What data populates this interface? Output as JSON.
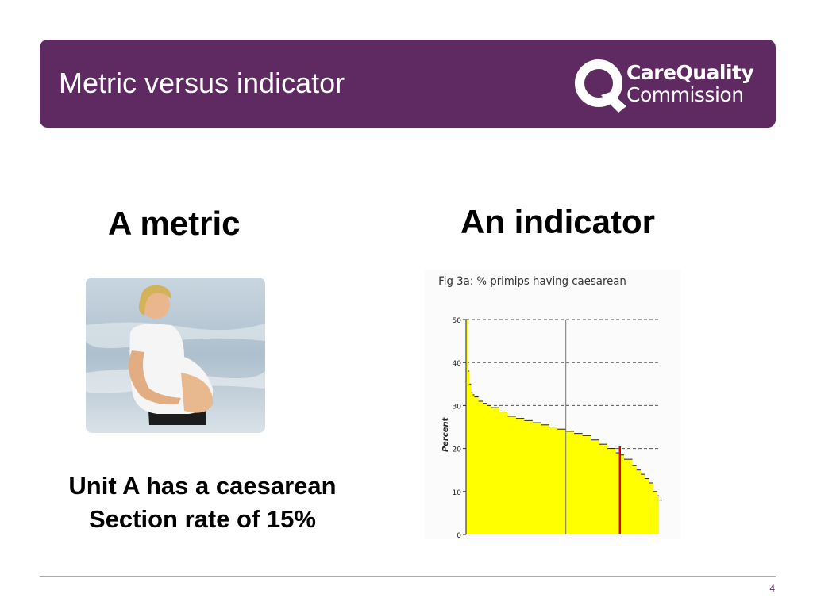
{
  "header": {
    "title": "Metric versus indicator",
    "background": "#5f2a62",
    "logo": {
      "line1": "CareQuality",
      "line2": "Commission",
      "icon": "cqc-q-logo"
    }
  },
  "left_column": {
    "heading": "A metric",
    "image": "pregnant-woman-photo",
    "caption_line1": "Unit A has a caesarean",
    "caption_line2": "Section rate of 15%"
  },
  "right_column": {
    "heading": "An indicator"
  },
  "chart_data": {
    "type": "area",
    "title": "Fig 3a: % primips having caesarean",
    "ylabel": "Percent",
    "xlabel": "",
    "ylim": [
      0,
      50
    ],
    "y_ticks": [
      "0",
      "10",
      "20",
      "30",
      "40",
      "50"
    ],
    "grid": "dashed horizontal at 20, 30, 40, 50",
    "fill_color": "#ffff00",
    "marker_color": "#e00000",
    "description_values": {
      "x": [
        0,
        2,
        4,
        6,
        8,
        10,
        15,
        20,
        25,
        30,
        40,
        50,
        60,
        70,
        80,
        90,
        100,
        110,
        120,
        130,
        140,
        150,
        160,
        170,
        180,
        185,
        190,
        200,
        205,
        210,
        215,
        220,
        225,
        230,
        232
      ],
      "y": [
        50,
        38,
        35,
        33,
        32.5,
        32,
        31,
        30.5,
        30,
        29.5,
        28.5,
        27.5,
        27,
        26.5,
        26,
        25.5,
        25,
        24.5,
        24,
        23.5,
        23,
        22,
        21,
        20,
        19,
        18.5,
        17.5,
        16,
        15,
        14,
        13,
        12,
        10,
        9,
        8
      ]
    },
    "vertical_reference_index": 120,
    "highlight_index": 185,
    "highlight_value": 20.5
  },
  "footer": {
    "page_number": "4"
  }
}
